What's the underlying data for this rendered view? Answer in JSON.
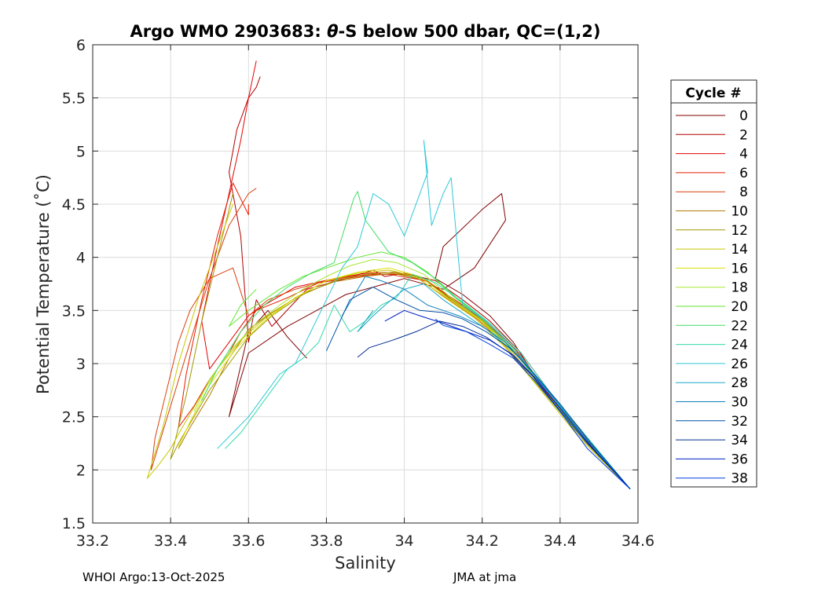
{
  "chart_data": {
    "type": "line",
    "title_prefix": "Argo WMO 2903683: ",
    "title_theta": "θ",
    "title_suffix": "-S below 500 dbar,  QC=(1,2)",
    "xlabel": "Salinity",
    "ylabel": "Potential Temperature (˚C)",
    "xlim": [
      33.2,
      34.6
    ],
    "ylim": [
      1.5,
      6
    ],
    "x_ticks": [
      33.2,
      33.4,
      33.6,
      33.8,
      34,
      34.2,
      34.4,
      34.6
    ],
    "x_tick_labels": [
      "33.2",
      "33.4",
      "33.6",
      "33.8",
      "34",
      "34.2",
      "34.4",
      "34.6"
    ],
    "y_ticks": [
      1.5,
      2,
      2.5,
      3,
      3.5,
      4,
      4.5,
      5,
      5.5,
      6
    ],
    "y_tick_labels": [
      "1.5",
      "2",
      "2.5",
      "3",
      "3.5",
      "4",
      "4.5",
      "5",
      "5.5",
      "6"
    ],
    "grid": true,
    "legend": {
      "title": "Cycle #",
      "placement": "right-outside",
      "entries": [
        "0",
        "2",
        "4",
        "6",
        "8",
        "10",
        "12",
        "14",
        "16",
        "18",
        "20",
        "22",
        "24",
        "26",
        "28",
        "30",
        "32",
        "34",
        "36",
        "38"
      ],
      "colors": [
        "#800000",
        "#b30000",
        "#e60000",
        "#e61a00",
        "#d9400d",
        "#b37a00",
        "#a09800",
        "#c8c800",
        "#d8e000",
        "#a8e830",
        "#66e633",
        "#40dd66",
        "#33d9aa",
        "#2ec8d8",
        "#1aa8c8",
        "#1080c0",
        "#0050a8",
        "#002a90",
        "#0020c0",
        "#0040e0"
      ]
    },
    "series": [
      {
        "id": 0,
        "x": [
          34.58,
          34.45,
          34.35,
          34.28,
          34.22,
          34.15,
          34.08,
          34.1,
          34.2,
          34.25,
          34.26,
          34.18,
          34.1,
          34.0,
          33.95,
          33.9,
          33.85,
          33.8,
          33.7,
          33.6,
          33.55,
          33.6,
          33.65,
          33.7,
          33.75
        ],
        "y": [
          1.82,
          2.35,
          2.8,
          3.2,
          3.45,
          3.65,
          3.8,
          4.1,
          4.45,
          4.6,
          4.35,
          3.9,
          3.7,
          3.8,
          3.75,
          3.7,
          3.65,
          3.55,
          3.35,
          3.1,
          2.5,
          3.3,
          3.5,
          3.25,
          3.05
        ]
      },
      {
        "id": 2,
        "x": [
          34.58,
          34.48,
          34.38,
          34.3,
          34.22,
          34.15,
          34.08,
          34.0,
          33.95,
          33.92,
          33.85,
          33.75,
          33.66,
          33.62,
          33.6,
          33.58,
          33.55,
          33.57,
          33.6,
          33.62,
          33.63
        ],
        "y": [
          1.82,
          2.25,
          2.7,
          3.1,
          3.4,
          3.6,
          3.78,
          3.85,
          3.82,
          3.88,
          3.8,
          3.7,
          3.35,
          3.6,
          3.2,
          4.2,
          4.8,
          5.2,
          5.5,
          5.6,
          5.7
        ]
      },
      {
        "id": 4,
        "x": [
          34.58,
          34.46,
          34.36,
          34.28,
          34.2,
          34.12,
          34.05,
          33.98,
          33.9,
          33.82,
          33.72,
          33.64,
          33.6,
          33.55,
          33.5,
          33.48,
          33.52,
          33.55,
          33.58,
          33.6,
          33.62
        ],
        "y": [
          1.82,
          2.3,
          2.75,
          3.15,
          3.42,
          3.62,
          3.8,
          3.86,
          3.85,
          3.8,
          3.72,
          3.55,
          3.45,
          3.2,
          2.95,
          3.4,
          4.1,
          4.6,
          5.1,
          5.5,
          5.85
        ]
      },
      {
        "id": 6,
        "x": [
          34.58,
          34.47,
          34.37,
          34.29,
          34.21,
          34.13,
          34.06,
          33.99,
          33.92,
          33.85,
          33.78,
          33.7,
          33.62,
          33.58,
          33.55,
          33.5,
          33.46,
          33.42,
          33.44,
          33.48,
          33.52,
          33.56,
          33.6,
          33.6
        ],
        "y": [
          1.82,
          2.28,
          2.72,
          3.12,
          3.4,
          3.6,
          3.77,
          3.84,
          3.84,
          3.8,
          3.76,
          3.62,
          3.5,
          3.3,
          3.1,
          2.85,
          2.6,
          2.4,
          2.9,
          3.6,
          4.2,
          4.7,
          4.4,
          4.5
        ]
      },
      {
        "id": 8,
        "x": [
          34.58,
          34.46,
          34.36,
          34.27,
          34.19,
          34.11,
          34.04,
          33.96,
          33.88,
          33.8,
          33.72,
          33.65,
          33.6,
          33.56,
          33.5,
          33.45,
          33.42,
          33.4,
          33.36,
          33.35,
          33.4,
          33.45,
          33.5,
          33.55,
          33.6,
          33.62
        ],
        "y": [
          1.82,
          2.3,
          2.74,
          3.14,
          3.41,
          3.61,
          3.79,
          3.84,
          3.83,
          3.78,
          3.7,
          3.6,
          3.45,
          3.9,
          3.8,
          3.5,
          3.2,
          2.9,
          2.3,
          2.0,
          2.6,
          3.2,
          3.8,
          4.3,
          4.6,
          4.65
        ]
      },
      {
        "id": 10,
        "x": [
          34.58,
          34.47,
          34.37,
          34.28,
          34.2,
          34.12,
          34.05,
          33.97,
          33.9,
          33.82,
          33.74,
          33.66,
          33.6,
          33.55,
          33.5,
          33.45,
          33.42
        ],
        "y": [
          1.82,
          2.3,
          2.73,
          3.13,
          3.41,
          3.61,
          3.79,
          3.85,
          3.82,
          3.77,
          3.66,
          3.48,
          3.32,
          3.05,
          2.7,
          2.4,
          2.2
        ]
      },
      {
        "id": 12,
        "x": [
          34.58,
          34.46,
          34.36,
          34.27,
          34.2,
          34.12,
          34.05,
          33.97,
          33.9,
          33.82,
          33.74,
          33.66,
          33.6,
          33.55,
          33.5,
          33.46,
          33.42,
          33.4,
          33.44,
          33.48,
          33.52,
          33.56
        ],
        "y": [
          1.82,
          2.28,
          2.72,
          3.12,
          3.4,
          3.6,
          3.8,
          3.86,
          3.84,
          3.78,
          3.65,
          3.45,
          3.25,
          3.0,
          2.75,
          2.5,
          2.25,
          2.1,
          2.7,
          3.4,
          4.0,
          4.6
        ]
      },
      {
        "id": 14,
        "x": [
          34.58,
          34.45,
          34.35,
          34.26,
          34.18,
          34.1,
          34.03,
          33.96,
          33.88,
          33.8,
          33.72,
          33.64,
          33.58,
          33.52,
          33.47,
          33.43,
          33.4,
          33.37,
          33.34,
          33.38,
          33.42,
          33.47,
          33.52,
          33.56
        ],
        "y": [
          1.82,
          2.3,
          2.75,
          3.15,
          3.43,
          3.63,
          3.82,
          3.88,
          3.85,
          3.78,
          3.62,
          3.42,
          3.22,
          2.95,
          2.65,
          2.4,
          2.2,
          2.05,
          1.92,
          2.4,
          3.0,
          3.6,
          4.1,
          4.5
        ]
      },
      {
        "id": 16,
        "x": [
          34.58,
          34.46,
          34.36,
          34.27,
          34.19,
          34.11,
          34.04,
          33.96,
          33.88,
          33.8,
          33.72,
          33.64,
          33.57,
          33.5,
          33.45,
          33.42
        ],
        "y": [
          1.82,
          2.3,
          2.74,
          3.14,
          3.42,
          3.62,
          3.82,
          3.9,
          3.86,
          3.78,
          3.62,
          3.4,
          3.15,
          2.8,
          2.45,
          2.22
        ]
      },
      {
        "id": 18,
        "x": [
          34.58,
          34.47,
          34.37,
          34.28,
          34.2,
          34.12,
          34.05,
          33.98,
          33.92,
          33.86,
          33.8,
          33.74,
          33.68,
          33.62,
          33.56,
          33.5,
          33.46
        ],
        "y": [
          1.82,
          2.28,
          2.72,
          3.12,
          3.4,
          3.62,
          3.84,
          3.95,
          3.98,
          3.92,
          3.82,
          3.7,
          3.55,
          3.38,
          3.15,
          2.85,
          2.55
        ]
      },
      {
        "id": 20,
        "x": [
          34.58,
          34.46,
          34.36,
          34.28,
          34.2,
          34.13,
          34.06,
          34.0,
          33.94,
          33.88,
          33.84,
          33.8,
          33.74,
          33.68,
          33.6,
          33.55,
          33.58,
          33.62
        ],
        "y": [
          1.82,
          2.3,
          2.74,
          3.13,
          3.42,
          3.62,
          3.86,
          4.0,
          4.05,
          4.0,
          3.95,
          3.9,
          3.82,
          3.7,
          3.5,
          3.35,
          3.55,
          3.7
        ]
      },
      {
        "id": 22,
        "x": [
          34.58,
          34.47,
          34.37,
          34.29,
          34.21,
          34.14,
          34.08,
          34.02,
          33.96,
          33.9,
          33.88,
          33.87,
          33.82,
          33.76,
          33.7,
          33.64,
          33.58,
          33.52,
          33.48
        ],
        "y": [
          1.82,
          2.28,
          2.72,
          3.11,
          3.4,
          3.6,
          3.8,
          3.95,
          4.05,
          4.35,
          4.62,
          4.55,
          3.95,
          3.85,
          3.72,
          3.55,
          3.3,
          2.95,
          2.65
        ]
      },
      {
        "id": 24,
        "x": [
          34.58,
          34.48,
          34.38,
          34.3,
          34.22,
          34.15,
          34.08,
          34.02,
          33.98,
          33.94,
          33.9,
          33.86,
          33.82,
          33.78,
          33.74,
          33.7,
          33.66,
          33.62,
          33.58,
          33.54
        ],
        "y": [
          1.82,
          2.26,
          2.7,
          3.1,
          3.38,
          3.58,
          3.76,
          3.84,
          3.62,
          3.55,
          3.4,
          3.3,
          3.55,
          3.2,
          3.05,
          2.95,
          2.75,
          2.55,
          2.35,
          2.2
        ]
      },
      {
        "id": 26,
        "x": [
          34.58,
          34.47,
          34.37,
          34.29,
          34.21,
          34.15,
          34.12,
          34.1,
          34.07,
          34.05,
          34.06,
          34.0,
          33.96,
          33.92,
          33.88,
          33.84,
          33.8,
          33.76,
          33.72,
          33.68,
          33.64,
          33.6,
          33.56,
          33.52
        ],
        "y": [
          1.82,
          2.28,
          2.72,
          3.11,
          3.4,
          3.55,
          4.75,
          4.6,
          4.3,
          5.1,
          4.8,
          4.2,
          4.5,
          4.6,
          4.1,
          3.9,
          3.6,
          3.3,
          3.0,
          2.9,
          2.7,
          2.5,
          2.35,
          2.2
        ]
      },
      {
        "id": 28,
        "x": [
          34.58,
          34.46,
          34.38,
          34.3,
          34.22,
          34.16,
          34.1,
          34.05,
          34.0,
          33.95,
          33.92,
          33.88,
          33.92
        ],
        "y": [
          1.82,
          2.3,
          2.7,
          3.05,
          3.3,
          3.45,
          3.6,
          3.75,
          3.7,
          3.55,
          3.45,
          3.3,
          3.5
        ]
      },
      {
        "id": 30,
        "x": [
          34.58,
          34.47,
          34.39,
          34.32,
          34.26,
          34.2,
          34.14,
          34.1,
          34.06,
          34.0,
          33.94,
          33.9,
          33.84
        ],
        "y": [
          1.82,
          2.28,
          2.65,
          2.95,
          3.2,
          3.35,
          3.45,
          3.5,
          3.55,
          3.7,
          3.78,
          3.82,
          3.45
        ]
      },
      {
        "id": 32,
        "x": [
          34.58,
          34.48,
          34.4,
          34.33,
          34.27,
          34.21,
          34.15,
          34.1,
          34.04,
          33.98,
          33.92,
          33.86,
          33.8
        ],
        "y": [
          1.82,
          2.25,
          2.62,
          2.92,
          3.15,
          3.3,
          3.42,
          3.48,
          3.5,
          3.6,
          3.72,
          3.6,
          3.12
        ]
      },
      {
        "id": 34,
        "x": [
          34.58,
          34.47,
          34.39,
          34.33,
          34.27,
          34.21,
          34.15,
          34.09,
          34.03,
          33.97,
          33.91,
          33.88
        ],
        "y": [
          1.82,
          2.25,
          2.6,
          2.88,
          3.1,
          3.25,
          3.35,
          3.4,
          3.3,
          3.22,
          3.15,
          3.06
        ]
      },
      {
        "id": 36,
        "x": [
          34.58,
          34.48,
          34.4,
          34.34,
          34.28,
          34.22,
          34.16,
          34.1,
          34.04,
          34.0,
          33.95
        ],
        "y": [
          1.82,
          2.22,
          2.58,
          2.85,
          3.08,
          3.22,
          3.3,
          3.38,
          3.45,
          3.5,
          3.4
        ]
      },
      {
        "id": 38,
        "x": [
          34.58,
          34.47,
          34.4,
          34.34,
          34.28,
          34.22,
          34.16,
          34.1,
          34.08
        ],
        "y": [
          1.82,
          2.2,
          2.55,
          2.82,
          3.05,
          3.18,
          3.3,
          3.36,
          3.42
        ]
      }
    ]
  },
  "footer": {
    "left": "WHOI Argo:13-Oct-2025",
    "right": "JMA at jma"
  }
}
